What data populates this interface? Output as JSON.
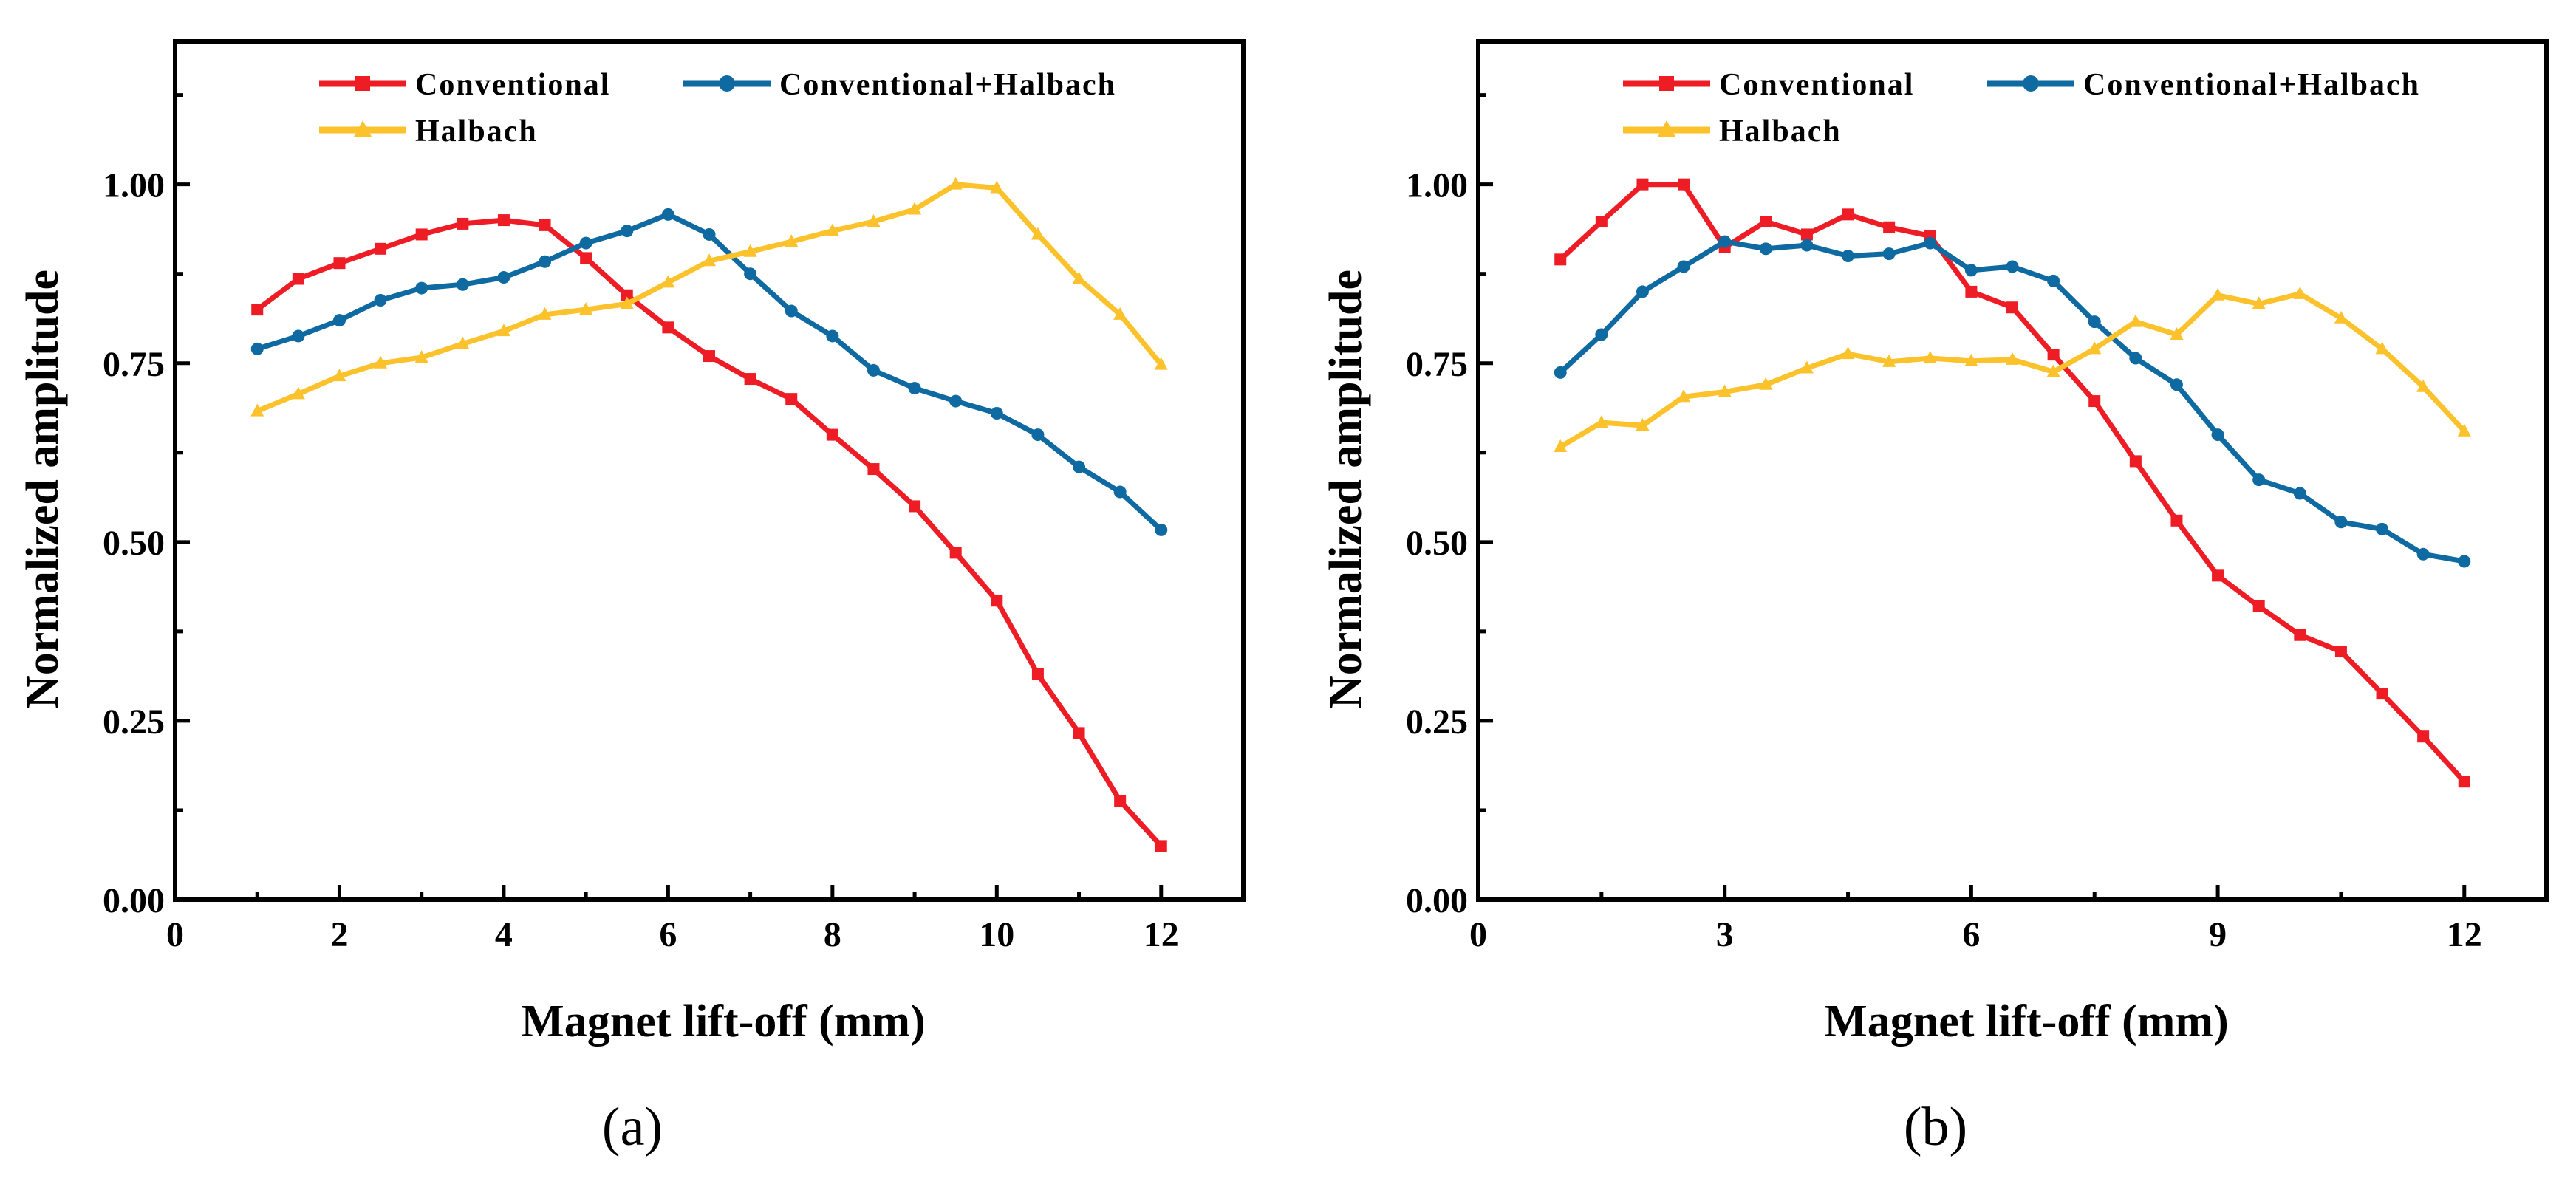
{
  "chart_data": [
    {
      "type": "line",
      "panel_label": "(a)",
      "xlabel": "Magnet lift-off (mm)",
      "ylabel": "Normalized amplitude",
      "xlim": [
        0,
        13
      ],
      "ylim": [
        0,
        1.2
      ],
      "x_ticks": [
        "0",
        "2",
        "4",
        "6",
        "8",
        "10",
        "12"
      ],
      "x_tick_values": [
        0,
        2,
        4,
        6,
        8,
        10,
        12
      ],
      "y_ticks": [
        "0.00",
        "0.25",
        "0.50",
        "0.75",
        "1.00"
      ],
      "y_tick_values": [
        0,
        0.25,
        0.5,
        0.75,
        1.0
      ],
      "legend_position": "top",
      "x": [
        1,
        1.5,
        2,
        2.5,
        3,
        3.5,
        4,
        4.5,
        5,
        5.5,
        6,
        6.5,
        7,
        7.5,
        8,
        8.5,
        9,
        9.5,
        10,
        10.5,
        11,
        11.5,
        12
      ],
      "series": [
        {
          "name": "Conventional",
          "color": "#ee1c25",
          "marker": "square",
          "values": [
            0.825,
            0.868,
            0.89,
            0.91,
            0.93,
            0.945,
            0.95,
            0.943,
            0.897,
            0.845,
            0.8,
            0.76,
            0.728,
            0.7,
            0.65,
            0.602,
            0.55,
            0.485,
            0.418,
            0.315,
            0.233,
            0.138,
            0.075
          ]
        },
        {
          "name": "Conventional+Halbach",
          "color": "#0e6aa1",
          "marker": "circle",
          "values": [
            0.77,
            0.788,
            0.81,
            0.838,
            0.855,
            0.86,
            0.87,
            0.892,
            0.918,
            0.935,
            0.958,
            0.93,
            0.875,
            0.823,
            0.788,
            0.74,
            0.715,
            0.697,
            0.68,
            0.65,
            0.605,
            0.57,
            0.517
          ]
        },
        {
          "name": "Halbach",
          "color": "#fbc22c",
          "marker": "triangle",
          "values": [
            0.683,
            0.707,
            0.732,
            0.75,
            0.758,
            0.777,
            0.795,
            0.818,
            0.825,
            0.833,
            0.863,
            0.893,
            0.906,
            0.92,
            0.935,
            0.948,
            0.965,
            1.0,
            0.995,
            0.93,
            0.868,
            0.818,
            0.748
          ]
        }
      ]
    },
    {
      "type": "line",
      "panel_label": "(b)",
      "xlabel": "Magnet lift-off (mm)",
      "ylabel": "Normalized amplitude",
      "xlim": [
        0,
        13
      ],
      "ylim": [
        0,
        1.2
      ],
      "x_ticks": [
        "0",
        "3",
        "6",
        "9",
        "12"
      ],
      "x_tick_values": [
        0,
        3,
        6,
        9,
        12
      ],
      "y_ticks": [
        "0.00",
        "0.25",
        "0.50",
        "0.75",
        "1.00"
      ],
      "y_tick_values": [
        0,
        0.25,
        0.5,
        0.75,
        1.0
      ],
      "legend_position": "top",
      "x": [
        1,
        1.5,
        2,
        2.5,
        3,
        3.5,
        4,
        4.5,
        5,
        5.5,
        6,
        6.5,
        7,
        7.5,
        8,
        8.5,
        9,
        9.5,
        10,
        10.5,
        11,
        11.5,
        12
      ],
      "series": [
        {
          "name": "Conventional",
          "color": "#ee1c25",
          "marker": "square",
          "values": [
            0.895,
            0.948,
            1.0,
            1.0,
            0.912,
            0.948,
            0.93,
            0.958,
            0.94,
            0.928,
            0.85,
            0.828,
            0.762,
            0.697,
            0.613,
            0.53,
            0.453,
            0.41,
            0.37,
            0.347,
            0.288,
            0.228,
            0.165
          ]
        },
        {
          "name": "Conventional+Halbach",
          "color": "#0e6aa1",
          "marker": "circle",
          "values": [
            0.737,
            0.79,
            0.85,
            0.885,
            0.92,
            0.91,
            0.915,
            0.9,
            0.903,
            0.918,
            0.88,
            0.885,
            0.865,
            0.808,
            0.757,
            0.72,
            0.65,
            0.587,
            0.568,
            0.528,
            0.518,
            0.483,
            0.473
          ]
        },
        {
          "name": "Halbach",
          "color": "#fbc22c",
          "marker": "triangle",
          "values": [
            0.633,
            0.667,
            0.663,
            0.703,
            0.71,
            0.72,
            0.743,
            0.763,
            0.752,
            0.757,
            0.753,
            0.755,
            0.738,
            0.77,
            0.808,
            0.79,
            0.845,
            0.833,
            0.847,
            0.813,
            0.77,
            0.717,
            0.655
          ]
        }
      ]
    }
  ]
}
